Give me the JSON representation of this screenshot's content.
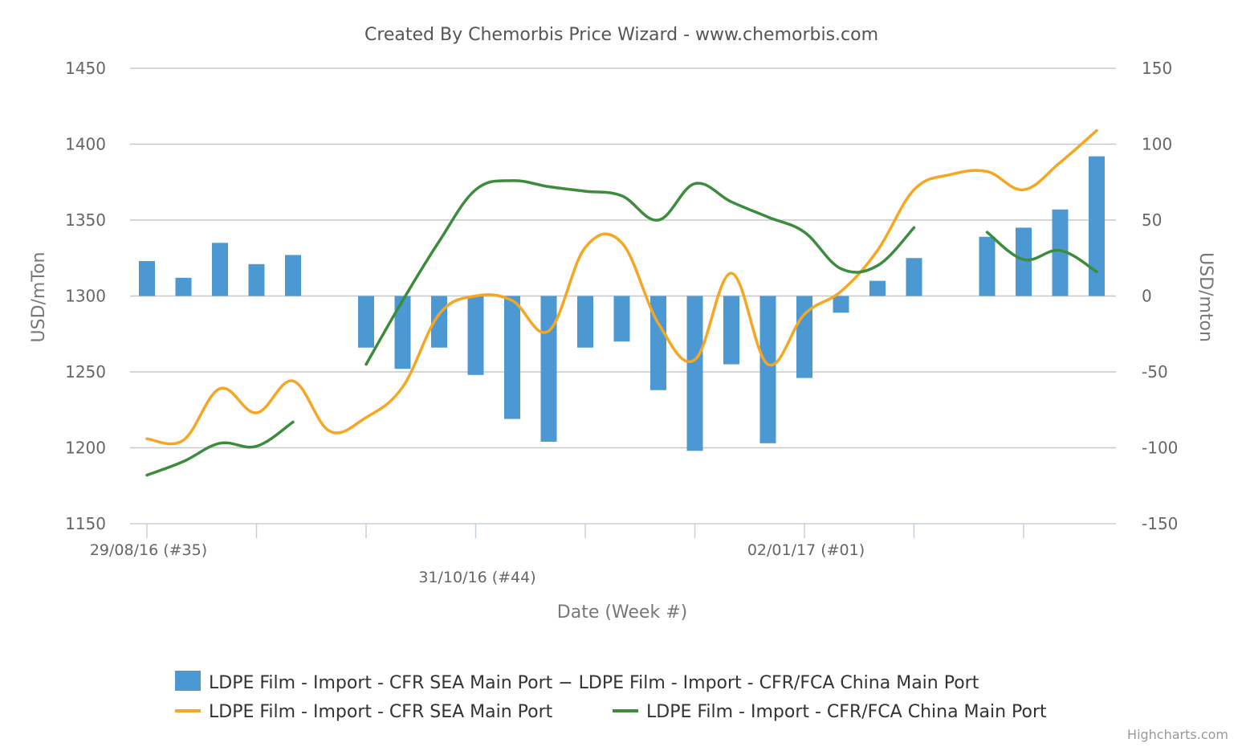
{
  "chart_data": {
    "type": "bar",
    "title": "Created By Chemorbis Price Wizard - www.chemorbis.com",
    "xlabel": "Date (Week #)",
    "ylabel_left": "USD/mTon",
    "ylabel_right": "USD/mton",
    "ylim_left": [
      1150,
      1450
    ],
    "ylim_right": [
      -150,
      150
    ],
    "yticks_left": [
      "1150",
      "1200",
      "1250",
      "1300",
      "1350",
      "1400",
      "1450"
    ],
    "yticks_right": [
      "-150",
      "-100",
      "-50",
      "0",
      "50",
      "100",
      "150"
    ],
    "x_labels": [
      {
        "text": "29/08/16 (#35)",
        "week": 0
      },
      {
        "text": "31/10/16 (#44)",
        "week": 9
      },
      {
        "text": "02/01/17 (#01)",
        "week": 18
      }
    ],
    "x_tick_weeks": [
      0,
      3,
      6,
      9,
      12,
      15,
      18,
      21,
      24
    ],
    "grid": true,
    "legend_position": "bottom",
    "credits": "Highcharts.com",
    "series": [
      {
        "name": "LDPE Film - Import - CFR SEA Main Port − LDPE Film - Import - CFR/FCA China Main Port",
        "kind": "bar",
        "axis": "right",
        "color": "#4b98d3",
        "points": [
          [
            0,
            23
          ],
          [
            1,
            12
          ],
          [
            2,
            35
          ],
          [
            3,
            21
          ],
          [
            4,
            27
          ],
          [
            6,
            -34
          ],
          [
            7,
            -48
          ],
          [
            8,
            -34
          ],
          [
            9,
            -52
          ],
          [
            10,
            -81
          ],
          [
            11,
            -96
          ],
          [
            12,
            -34
          ],
          [
            13,
            -30
          ],
          [
            14,
            -62
          ],
          [
            15,
            -102
          ],
          [
            16,
            -45
          ],
          [
            17,
            -97
          ],
          [
            18,
            -54
          ],
          [
            19,
            -11
          ],
          [
            20,
            10
          ],
          [
            21,
            25
          ],
          [
            23,
            39
          ],
          [
            24,
            45
          ],
          [
            25,
            57
          ],
          [
            26,
            92
          ]
        ]
      },
      {
        "name": "LDPE Film - Import - CFR SEA Main Port",
        "kind": "line",
        "axis": "left",
        "color": "#f5a623",
        "segments": [
          [
            [
              0,
              1206
            ],
            [
              1,
              1205
            ],
            [
              2,
              1239
            ],
            [
              3,
              1223
            ],
            [
              4,
              1244
            ],
            [
              5,
              1211
            ],
            [
              6,
              1220
            ],
            [
              7,
              1240
            ],
            [
              8,
              1288
            ],
            [
              9,
              1300
            ],
            [
              10,
              1297
            ],
            [
              11,
              1277
            ],
            [
              12,
              1332
            ],
            [
              13,
              1335
            ],
            [
              14,
              1282
            ],
            [
              15,
              1258
            ],
            [
              16,
              1315
            ],
            [
              17,
              1255
            ],
            [
              18,
              1288
            ],
            [
              19,
              1303
            ],
            [
              20,
              1330
            ],
            [
              21,
              1370
            ],
            [
              22,
              1380
            ],
            [
              23,
              1382
            ],
            [
              24,
              1370
            ],
            [
              25,
              1388
            ],
            [
              26,
              1409
            ]
          ]
        ]
      },
      {
        "name": "LDPE Film - Import - CFR/FCA China Main Port",
        "kind": "line",
        "axis": "left",
        "color": "#3d8b3d",
        "segments": [
          [
            [
              0,
              1182
            ],
            [
              1,
              1191
            ],
            [
              2,
              1203
            ],
            [
              3,
              1201
            ],
            [
              4,
              1217
            ]
          ],
          [
            [
              6,
              1255
            ],
            [
              7,
              1297
            ],
            [
              8,
              1336
            ],
            [
              9,
              1370
            ],
            [
              10,
              1376
            ],
            [
              11,
              1372
            ],
            [
              12,
              1369
            ],
            [
              13,
              1366
            ],
            [
              14,
              1350
            ],
            [
              15,
              1374
            ],
            [
              16,
              1362
            ],
            [
              17,
              1352
            ],
            [
              18,
              1342
            ],
            [
              19,
              1318
            ],
            [
              20,
              1320
            ],
            [
              21,
              1345
            ]
          ],
          [
            [
              23,
              1342
            ],
            [
              24,
              1324
            ],
            [
              25,
              1330
            ],
            [
              26,
              1316
            ]
          ]
        ]
      }
    ]
  }
}
